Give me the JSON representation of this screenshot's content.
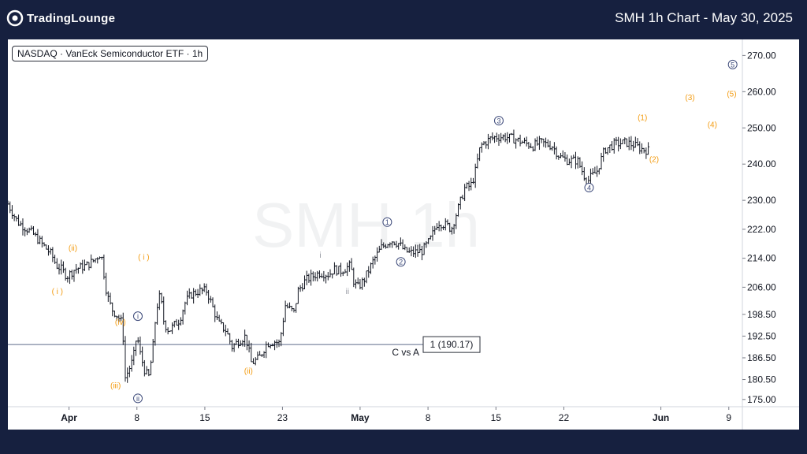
{
  "brand": {
    "name": "TradingLounge"
  },
  "header": {
    "title": "SMH 1h Chart - May 30, 2025"
  },
  "badge": {
    "text": "NASDAQ · VanEck Semiconductor ETF · 1h"
  },
  "watermark": {
    "text": "SMH 1h"
  },
  "colors": {
    "background": "#16203f",
    "panel": "#ffffff",
    "candle": "#131722",
    "orange_label": "#f39c12",
    "navy_label": "#3d4a7a",
    "level_line": "#5d6b8a"
  },
  "chart_data": {
    "type": "candlestick",
    "ylim": [
      173,
      274
    ],
    "y_ticks": [
      {
        "label": "270.00",
        "value": 270
      },
      {
        "label": "260.00",
        "value": 260
      },
      {
        "label": "250.00",
        "value": 250
      },
      {
        "label": "240.00",
        "value": 240
      },
      {
        "label": "230.00",
        "value": 230
      },
      {
        "label": "222.00",
        "value": 222
      },
      {
        "label": "214.00",
        "value": 214
      },
      {
        "label": "206.00",
        "value": 206
      },
      {
        "label": "198.50",
        "value": 198.5
      },
      {
        "label": "192.50",
        "value": 192.5
      },
      {
        "label": "186.50",
        "value": 186.5
      },
      {
        "label": "180.50",
        "value": 180.5
      },
      {
        "label": "175.00",
        "value": 175
      }
    ],
    "x_ticks": [
      {
        "label": "Apr",
        "day": 1,
        "bold": true
      },
      {
        "label": "8",
        "day": 8,
        "bold": false
      },
      {
        "label": "15",
        "day": 15,
        "bold": false
      },
      {
        "label": "23",
        "day": 23,
        "bold": false
      },
      {
        "label": "May",
        "day": 31,
        "bold": true
      },
      {
        "label": "8",
        "day": 38,
        "bold": false
      },
      {
        "label": "15",
        "day": 45,
        "bold": false
      },
      {
        "label": "22",
        "day": 52,
        "bold": false
      },
      {
        "label": "Jun",
        "day": 62,
        "bold": true
      },
      {
        "label": "9",
        "day": 69,
        "bold": false
      }
    ],
    "x_range_days": [
      -5.3,
      70.4
    ],
    "price_path": [
      [
        -5.3,
        229
      ],
      [
        -4.3,
        224
      ],
      [
        -2.8,
        221
      ],
      [
        -1.8,
        218
      ],
      [
        -0.8,
        215
      ],
      [
        -0.3,
        212
      ],
      [
        0.2,
        211
      ],
      [
        0.8,
        209
      ],
      [
        1.6,
        211
      ],
      [
        2.8,
        212
      ],
      [
        3.6,
        213.5
      ],
      [
        4.3,
        215.5
      ],
      [
        4.9,
        204
      ],
      [
        5.4,
        200
      ],
      [
        6,
        198
      ],
      [
        6.5,
        196
      ],
      [
        6.8,
        181
      ],
      [
        7.2,
        183.5
      ],
      [
        7.6,
        186
      ],
      [
        8,
        193
      ],
      [
        8.3,
        188
      ],
      [
        8.8,
        183
      ],
      [
        9.2,
        181
      ],
      [
        9.6,
        188
      ],
      [
        10,
        200
      ],
      [
        10.4,
        204
      ],
      [
        10.8,
        196
      ],
      [
        11.3,
        194
      ],
      [
        12,
        196
      ],
      [
        12.4,
        197
      ],
      [
        13,
        202
      ],
      [
        13.6,
        204
      ],
      [
        14.4,
        205
      ],
      [
        15.2,
        205
      ],
      [
        16.4,
        196
      ],
      [
        17.2,
        194
      ],
      [
        17.8,
        189.5
      ],
      [
        18.4,
        191
      ],
      [
        19.2,
        192.5
      ],
      [
        19.8,
        185
      ],
      [
        20.6,
        186.5
      ],
      [
        21.4,
        190.5
      ],
      [
        22.2,
        191
      ],
      [
        22.7,
        190.5
      ],
      [
        23.3,
        201
      ],
      [
        24.2,
        199
      ],
      [
        24.6,
        205
      ],
      [
        25.4,
        208
      ],
      [
        26.8,
        210
      ],
      [
        27.8,
        209.5
      ],
      [
        28.3,
        211
      ],
      [
        29,
        210.5
      ],
      [
        30,
        212
      ],
      [
        30.4,
        207
      ],
      [
        30.8,
        206
      ],
      [
        31.4,
        208
      ],
      [
        32.4,
        213.5
      ],
      [
        33.2,
        217
      ],
      [
        34.2,
        219
      ],
      [
        35,
        218
      ],
      [
        35.6,
        216
      ],
      [
        36.2,
        215.5
      ],
      [
        37.4,
        216
      ],
      [
        38.2,
        219
      ],
      [
        39,
        224
      ],
      [
        40,
        223
      ],
      [
        40.4,
        222
      ],
      [
        41.8,
        233.5
      ],
      [
        42.4,
        234
      ],
      [
        42.8,
        237
      ],
      [
        43.4,
        245
      ],
      [
        44.4,
        247
      ],
      [
        45,
        247.5
      ],
      [
        46,
        247.5
      ],
      [
        46.8,
        247
      ],
      [
        47.8,
        246
      ],
      [
        48.8,
        245
      ],
      [
        49.6,
        246
      ],
      [
        50.8,
        245
      ],
      [
        51.6,
        242
      ],
      [
        52.4,
        241
      ],
      [
        53.4,
        241
      ],
      [
        54.4,
        235
      ],
      [
        54.8,
        236.5
      ],
      [
        55.4,
        238
      ],
      [
        56.2,
        244
      ],
      [
        57.2,
        245.5
      ],
      [
        58.4,
        246
      ],
      [
        59.4,
        245
      ],
      [
        60.2,
        244
      ],
      [
        60.7,
        243.8
      ]
    ],
    "wave_labels": [
      {
        "text": "(ii)",
        "day": 1.4,
        "price": 217,
        "color": "orange",
        "style": "text"
      },
      {
        "text": "( i )",
        "day": -0.2,
        "price": 205,
        "color": "orange",
        "style": "text"
      },
      {
        "text": "(iv)",
        "day": 6.3,
        "price": 196.5,
        "color": "orange",
        "style": "text"
      },
      {
        "text": "(iii)",
        "day": 5.8,
        "price": 179,
        "color": "orange",
        "style": "text"
      },
      {
        "text": "( i )",
        "day": 8.7,
        "price": 214.5,
        "color": "orange",
        "style": "text"
      },
      {
        "text": "(ii)",
        "day": 19.5,
        "price": 183,
        "color": "orange",
        "style": "text"
      },
      {
        "text": "(1)",
        "day": 60.1,
        "price": 253,
        "color": "orange",
        "style": "text"
      },
      {
        "text": "(2)",
        "day": 61.3,
        "price": 241.5,
        "color": "orange",
        "style": "text"
      },
      {
        "text": "(3)",
        "day": 65,
        "price": 258.5,
        "color": "orange",
        "style": "text"
      },
      {
        "text": "(4)",
        "day": 67.3,
        "price": 251,
        "color": "orange",
        "style": "text"
      },
      {
        "text": "(5)",
        "day": 69.3,
        "price": 259.5,
        "color": "orange",
        "style": "text"
      },
      {
        "text": "i",
        "day": 8.1,
        "price": 198,
        "color": "navy",
        "style": "circle"
      },
      {
        "text": "ii",
        "day": 8.1,
        "price": 175.3,
        "color": "navy",
        "style": "circle"
      },
      {
        "text": "1",
        "day": 33.8,
        "price": 224,
        "color": "navy",
        "style": "circle"
      },
      {
        "text": "2",
        "day": 35.2,
        "price": 213,
        "color": "navy",
        "style": "circle"
      },
      {
        "text": "3",
        "day": 45.3,
        "price": 252,
        "color": "navy",
        "style": "circle"
      },
      {
        "text": "4",
        "day": 54.6,
        "price": 233.5,
        "color": "navy",
        "style": "circle"
      },
      {
        "text": "5",
        "day": 69.4,
        "price": 267.5,
        "color": "navy",
        "style": "circle"
      },
      {
        "text": "i",
        "day": 26.9,
        "price": 215,
        "color": "gray",
        "style": "text"
      },
      {
        "text": "ii",
        "day": 29.7,
        "price": 205,
        "color": "gray",
        "style": "text"
      }
    ],
    "annotations": [
      {
        "type": "hline",
        "price": 190.17,
        "label": "C vs A",
        "box_label": "1 (190.17)"
      }
    ]
  }
}
